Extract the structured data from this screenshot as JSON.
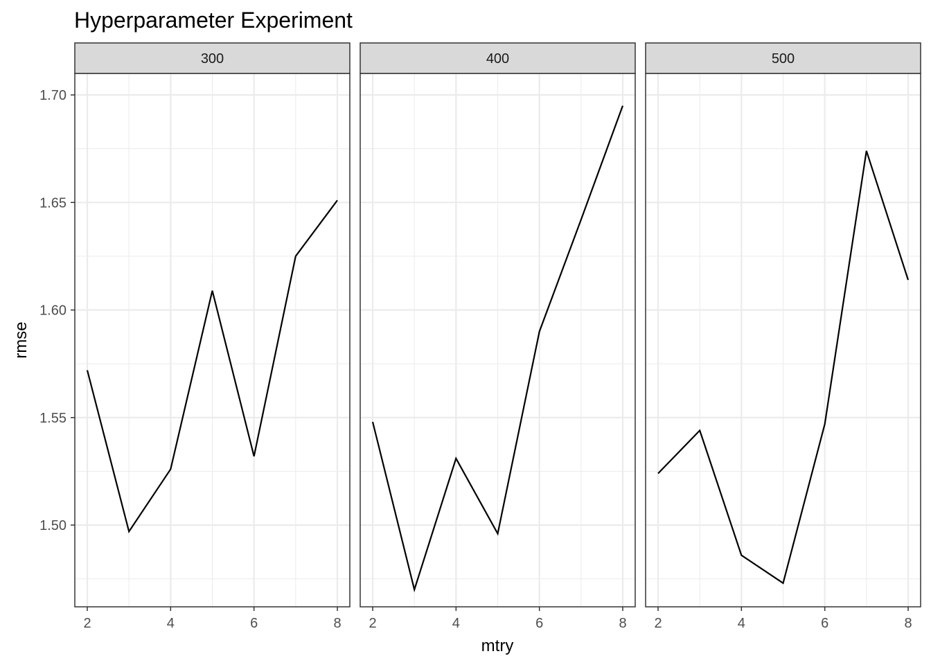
{
  "chart_data": {
    "type": "line",
    "title": "Hyperparameter Experiment",
    "xlabel": "mtry",
    "ylabel": "rmse",
    "xlim": [
      2,
      8
    ],
    "ylim": [
      1.462,
      1.71
    ],
    "x_ticks": [
      2,
      4,
      6,
      8
    ],
    "y_ticks": [
      1.5,
      1.55,
      1.6,
      1.65,
      1.7
    ],
    "y_tick_labels": [
      "1.50",
      "1.55",
      "1.60",
      "1.65",
      "1.70"
    ],
    "grid": true,
    "colors": {
      "line": "#000000",
      "strip": "#d9d9d9",
      "grid": "#ebebeb"
    },
    "panels": [
      {
        "label": "300",
        "x": [
          2,
          3,
          4,
          5,
          6,
          7,
          8
        ],
        "y": [
          1.572,
          1.497,
          1.526,
          1.609,
          1.532,
          1.625,
          1.651
        ]
      },
      {
        "label": "400",
        "x": [
          2,
          3,
          4,
          5,
          6,
          7,
          8
        ],
        "y": [
          1.548,
          1.47,
          1.531,
          1.496,
          1.59,
          1.642,
          1.695
        ]
      },
      {
        "label": "500",
        "x": [
          2,
          3,
          4,
          5,
          6,
          7,
          8
        ],
        "y": [
          1.524,
          1.544,
          1.486,
          1.473,
          1.547,
          1.674,
          1.614
        ]
      }
    ]
  }
}
